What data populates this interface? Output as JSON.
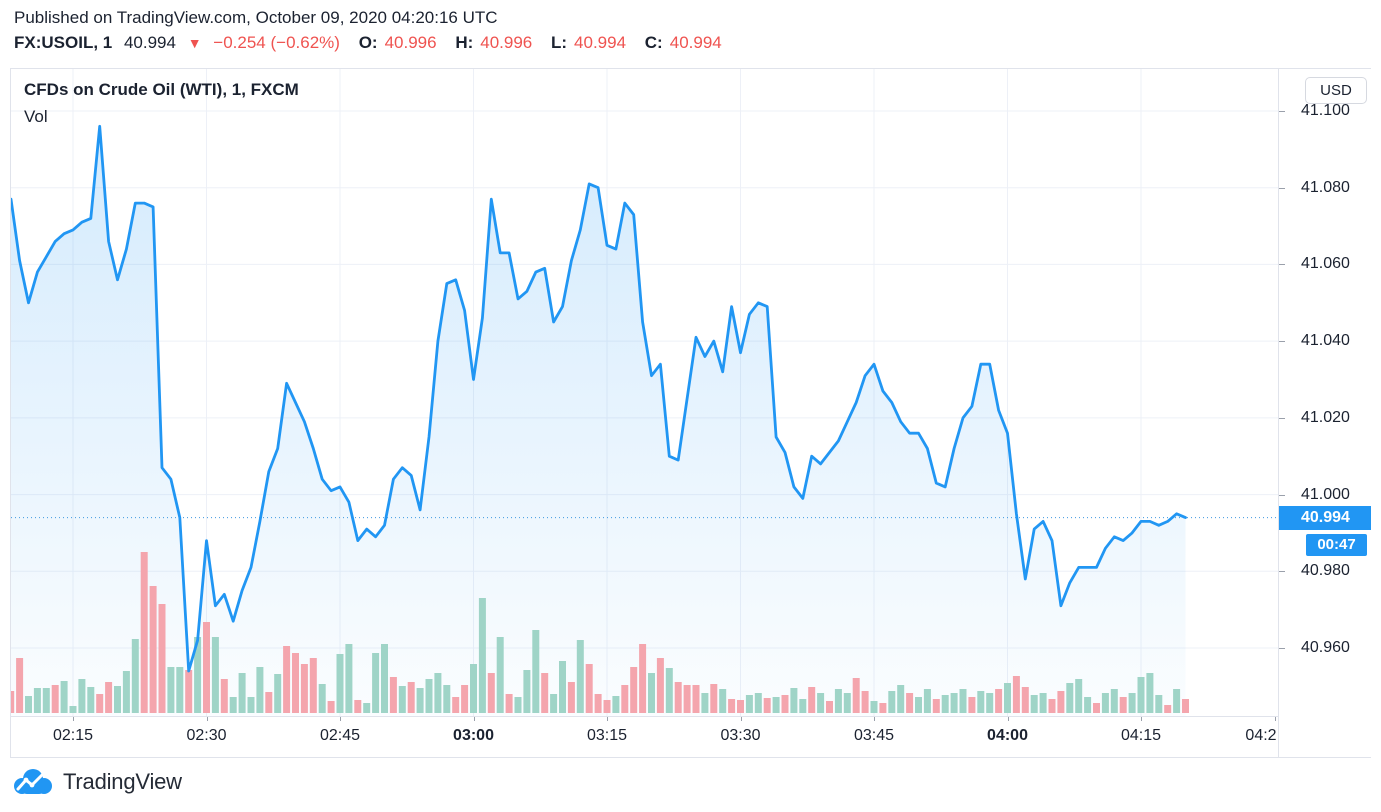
{
  "header": {
    "published_line": "Published on TradingView.com, October 09, 2020 04:20:16 UTC",
    "symbol": "FX:USOIL, 1",
    "last_price": "40.994",
    "change_arrow": "▼",
    "change": "−0.254 (−0.62%)",
    "o_label": "O:",
    "o_value": "40.996",
    "h_label": "H:",
    "h_value": "40.996",
    "l_label": "L:",
    "l_value": "40.994",
    "c_label": "C:",
    "c_value": "40.994"
  },
  "chart": {
    "legend_title": "CFDs on Crude Oil (WTI), 1, FXCM",
    "vol_label": "Vol",
    "currency_badge": "USD",
    "price_tag": "40.994",
    "countdown_tag": "00:47"
  },
  "axes": {
    "price_ticks": [
      {
        "price": 41.1,
        "label": "41.100"
      },
      {
        "price": 41.08,
        "label": "41.080"
      },
      {
        "price": 41.06,
        "label": "41.060"
      },
      {
        "price": 41.04,
        "label": "41.040"
      },
      {
        "price": 41.02,
        "label": "41.020"
      },
      {
        "price": 41.0,
        "label": "41.000"
      },
      {
        "price": 40.98,
        "label": "40.980"
      },
      {
        "price": 40.96,
        "label": "40.960"
      }
    ],
    "time_ticks": [
      {
        "min": 15,
        "label": "02:15",
        "bold": false
      },
      {
        "min": 30,
        "label": "02:30",
        "bold": false
      },
      {
        "min": 45,
        "label": "02:45",
        "bold": false
      },
      {
        "min": 60,
        "label": "03:00",
        "bold": true
      },
      {
        "min": 75,
        "label": "03:15",
        "bold": false
      },
      {
        "min": 90,
        "label": "03:30",
        "bold": false
      },
      {
        "min": 105,
        "label": "03:45",
        "bold": false
      },
      {
        "min": 120,
        "label": "04:00",
        "bold": true
      },
      {
        "min": 135,
        "label": "04:15",
        "bold": false
      },
      {
        "min": 150,
        "label": "04:2",
        "bold": false,
        "edge": true
      }
    ]
  },
  "colors": {
    "line_blue": "#2196f3",
    "area_top": "rgba(33,150,243,0.20)",
    "area_bottom": "rgba(33,150,243,0.02)",
    "dotted_price_line": "#3f98e0",
    "vol_up": "#9fd4c7",
    "vol_down": "#f4a5ad",
    "grid": "#edf0f7",
    "axis_border": "#e0e3eb",
    "text_dark": "#1b2230",
    "red_text": "#ef5350",
    "tag_blue": "#2196f3"
  },
  "footer": {
    "brand": "TradingView"
  },
  "chart_data": {
    "type": "area",
    "title": "CFDs on Crude Oil (WTI), 1, FXCM",
    "ylabel": "USD",
    "ylim": [
      40.95,
      41.105
    ],
    "x_range": [
      "02:08",
      "04:20"
    ],
    "legend_position": "top-left",
    "grid": true,
    "current_price": 40.994,
    "countdown": "00:47",
    "price_series": {
      "name": "price",
      "start_time": "02:08",
      "interval_minutes": 1,
      "values": [
        41.077,
        41.061,
        41.05,
        41.058,
        41.062,
        41.066,
        41.068,
        41.069,
        41.071,
        41.072,
        41.096,
        41.066,
        41.056,
        41.064,
        41.076,
        41.076,
        41.075,
        41.007,
        41.004,
        40.994,
        40.954,
        40.962,
        40.988,
        40.971,
        40.974,
        40.967,
        40.975,
        40.981,
        40.993,
        41.006,
        41.012,
        41.029,
        41.024,
        41.019,
        41.012,
        41.004,
        41.001,
        41.002,
        40.998,
        40.988,
        40.991,
        40.989,
        40.992,
        41.004,
        41.007,
        41.005,
        40.996,
        41.015,
        41.04,
        41.055,
        41.056,
        41.048,
        41.03,
        41.046,
        41.077,
        41.063,
        41.063,
        41.051,
        41.053,
        41.058,
        41.059,
        41.045,
        41.049,
        41.061,
        41.069,
        41.081,
        41.08,
        41.065,
        41.064,
        41.076,
        41.073,
        41.045,
        41.031,
        41.034,
        41.01,
        41.009,
        41.025,
        41.041,
        41.036,
        41.04,
        41.032,
        41.049,
        41.037,
        41.047,
        41.05,
        41.049,
        41.015,
        41.011,
        41.002,
        40.999,
        41.01,
        41.008,
        41.011,
        41.014,
        41.019,
        41.024,
        41.031,
        41.034,
        41.027,
        41.024,
        41.019,
        41.016,
        41.016,
        41.012,
        41.003,
        41.002,
        41.012,
        41.02,
        41.023,
        41.034,
        41.034,
        41.022,
        41.016,
        40.995,
        40.978,
        40.991,
        40.993,
        40.988,
        40.971,
        40.977,
        40.981,
        40.981,
        40.981,
        40.986,
        40.989,
        40.988,
        40.99,
        40.993,
        40.993,
        40.992,
        40.993,
        40.995,
        40.994
      ]
    },
    "volume_series": {
      "name": "Vol",
      "note": "relative bar heights (px), u = up/teal, d = down/red",
      "values": [
        [
          22,
          "d"
        ],
        [
          55,
          "d"
        ],
        [
          17,
          "u"
        ],
        [
          25,
          "u"
        ],
        [
          25,
          "u"
        ],
        [
          28,
          "d"
        ],
        [
          32,
          "u"
        ],
        [
          7,
          "u"
        ],
        [
          34,
          "u"
        ],
        [
          26,
          "u"
        ],
        [
          19,
          "d"
        ],
        [
          31,
          "d"
        ],
        [
          27,
          "u"
        ],
        [
          42,
          "u"
        ],
        [
          74,
          "u"
        ],
        [
          161,
          "d"
        ],
        [
          127,
          "d"
        ],
        [
          109,
          "d"
        ],
        [
          46,
          "u"
        ],
        [
          46,
          "u"
        ],
        [
          43,
          "d"
        ],
        [
          76,
          "u"
        ],
        [
          91,
          "d"
        ],
        [
          76,
          "u"
        ],
        [
          34,
          "d"
        ],
        [
          16,
          "u"
        ],
        [
          40,
          "u"
        ],
        [
          16,
          "u"
        ],
        [
          46,
          "u"
        ],
        [
          21,
          "d"
        ],
        [
          39,
          "u"
        ],
        [
          67,
          "d"
        ],
        [
          60,
          "d"
        ],
        [
          49,
          "d"
        ],
        [
          55,
          "d"
        ],
        [
          29,
          "u"
        ],
        [
          12,
          "d"
        ],
        [
          59,
          "u"
        ],
        [
          69,
          "u"
        ],
        [
          13,
          "d"
        ],
        [
          10,
          "u"
        ],
        [
          60,
          "u"
        ],
        [
          69,
          "u"
        ],
        [
          36,
          "d"
        ],
        [
          27,
          "u"
        ],
        [
          31,
          "d"
        ],
        [
          25,
          "u"
        ],
        [
          34,
          "u"
        ],
        [
          40,
          "u"
        ],
        [
          28,
          "u"
        ],
        [
          16,
          "d"
        ],
        [
          28,
          "d"
        ],
        [
          49,
          "u"
        ],
        [
          115,
          "u"
        ],
        [
          40,
          "d"
        ],
        [
          76,
          "u"
        ],
        [
          19,
          "d"
        ],
        [
          16,
          "u"
        ],
        [
          43,
          "u"
        ],
        [
          83,
          "u"
        ],
        [
          40,
          "d"
        ],
        [
          19,
          "u"
        ],
        [
          52,
          "u"
        ],
        [
          31,
          "d"
        ],
        [
          73,
          "u"
        ],
        [
          49,
          "d"
        ],
        [
          19,
          "d"
        ],
        [
          13,
          "d"
        ],
        [
          17,
          "u"
        ],
        [
          28,
          "d"
        ],
        [
          46,
          "d"
        ],
        [
          69,
          "d"
        ],
        [
          40,
          "u"
        ],
        [
          55,
          "d"
        ],
        [
          45,
          "u"
        ],
        [
          31,
          "d"
        ],
        [
          28,
          "d"
        ],
        [
          28,
          "d"
        ],
        [
          20,
          "u"
        ],
        [
          29,
          "d"
        ],
        [
          24,
          "u"
        ],
        [
          14,
          "d"
        ],
        [
          13,
          "d"
        ],
        [
          18,
          "u"
        ],
        [
          20,
          "u"
        ],
        [
          15,
          "d"
        ],
        [
          16,
          "u"
        ],
        [
          18,
          "d"
        ],
        [
          25,
          "u"
        ],
        [
          14,
          "u"
        ],
        [
          26,
          "d"
        ],
        [
          20,
          "u"
        ],
        [
          12,
          "d"
        ],
        [
          24,
          "u"
        ],
        [
          20,
          "u"
        ],
        [
          35,
          "d"
        ],
        [
          22,
          "d"
        ],
        [
          12,
          "u"
        ],
        [
          10,
          "d"
        ],
        [
          22,
          "u"
        ],
        [
          28,
          "u"
        ],
        [
          20,
          "d"
        ],
        [
          16,
          "u"
        ],
        [
          24,
          "u"
        ],
        [
          14,
          "d"
        ],
        [
          18,
          "u"
        ],
        [
          20,
          "u"
        ],
        [
          24,
          "u"
        ],
        [
          16,
          "d"
        ],
        [
          22,
          "u"
        ],
        [
          20,
          "u"
        ],
        [
          24,
          "d"
        ],
        [
          30,
          "u"
        ],
        [
          37,
          "d"
        ],
        [
          26,
          "d"
        ],
        [
          18,
          "u"
        ],
        [
          20,
          "u"
        ],
        [
          14,
          "d"
        ],
        [
          22,
          "d"
        ],
        [
          30,
          "u"
        ],
        [
          34,
          "u"
        ],
        [
          16,
          "u"
        ],
        [
          10,
          "d"
        ],
        [
          20,
          "u"
        ],
        [
          24,
          "u"
        ],
        [
          16,
          "d"
        ],
        [
          20,
          "u"
        ],
        [
          36,
          "u"
        ],
        [
          40,
          "u"
        ],
        [
          18,
          "u"
        ],
        [
          8,
          "d"
        ],
        [
          24,
          "u"
        ],
        [
          14,
          "d"
        ]
      ]
    }
  }
}
